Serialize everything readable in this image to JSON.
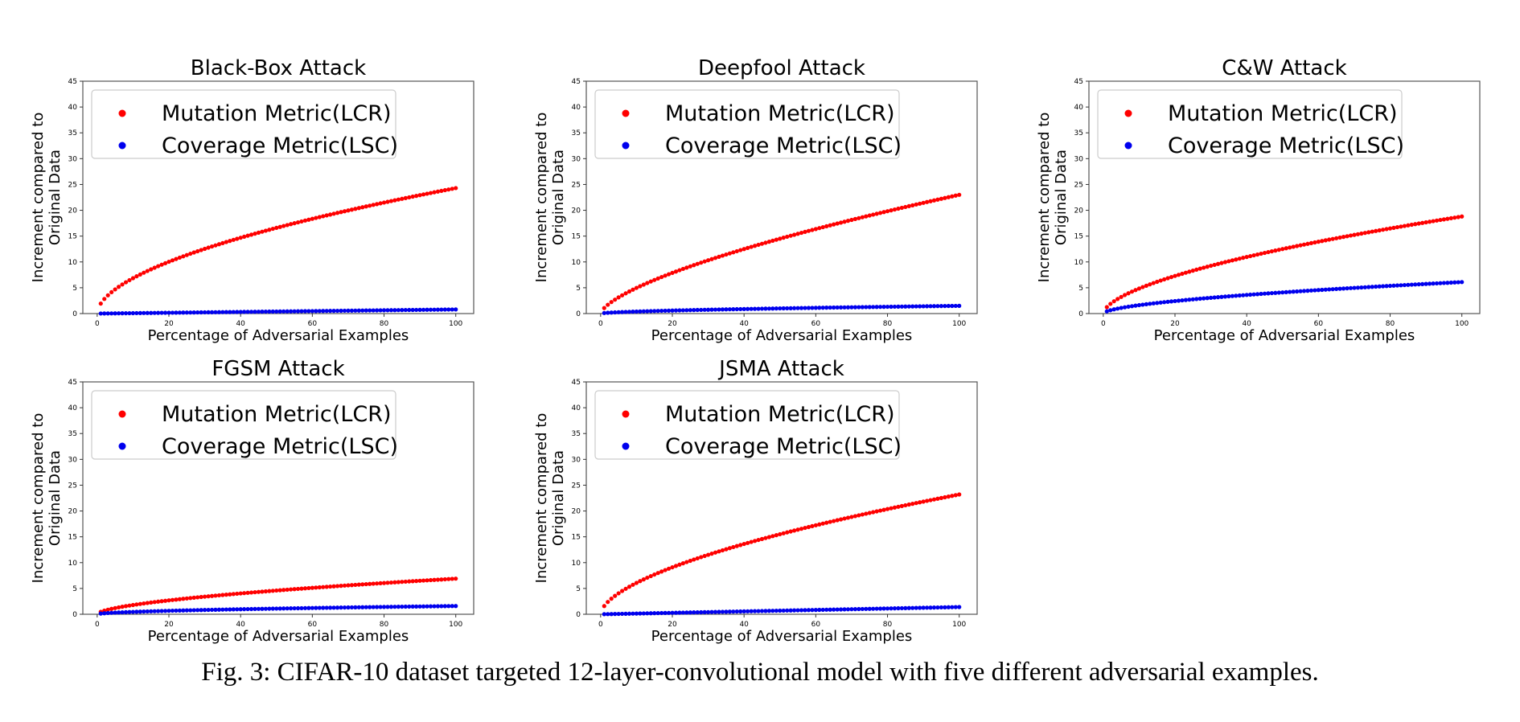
{
  "caption": "Fig. 3: CIFAR-10 dataset targeted 12-layer-convolutional model with five different adversarial examples.",
  "colors": {
    "lcr": "#ff0000",
    "lsc": "#0000ee",
    "axes": "#555555",
    "legend_border": "#cccccc"
  },
  "chart_data": [
    {
      "type": "scatter",
      "title": "Black-Box Attack",
      "xlabel": "Percentage of Adversarial Examples",
      "ylabel": [
        "Increment compared to",
        "Original Data"
      ],
      "xlim": [
        -4,
        105
      ],
      "ylim": [
        0,
        45
      ],
      "xticks": [
        "0",
        "20",
        "40",
        "60",
        "80",
        "100"
      ],
      "yticks": [
        "0",
        "5",
        "10",
        "15",
        "20",
        "25",
        "30",
        "35",
        "40",
        "45"
      ],
      "legend_position": "upper-left",
      "series": [
        {
          "name": "Mutation Metric(LCR)",
          "color": "#ff0000",
          "curve": "concave",
          "start": 0,
          "end": 24.3,
          "y_at_50": 16.6
        },
        {
          "name": "Coverage Metric(LSC)",
          "color": "#0000ee",
          "curve": "linear",
          "start": 0,
          "end": 0.8
        }
      ]
    },
    {
      "type": "scatter",
      "title": "Deepfool Attack",
      "xlabel": "Percentage of Adversarial Examples",
      "ylabel": [
        "Increment compared to",
        "Original Data"
      ],
      "xlim": [
        -4,
        105
      ],
      "ylim": [
        0,
        45
      ],
      "xticks": [
        "0",
        "20",
        "40",
        "60",
        "80",
        "100"
      ],
      "yticks": [
        "0",
        "5",
        "10",
        "15",
        "20",
        "25",
        "30",
        "35",
        "40",
        "45"
      ],
      "legend_position": "upper-left",
      "series": [
        {
          "name": "Mutation Metric(LCR)",
          "color": "#ff0000",
          "curve": "concave",
          "start": 0,
          "end": 23.0,
          "y_at_50": 14.5
        },
        {
          "name": "Coverage Metric(LSC)",
          "color": "#0000ee",
          "curve": "concave",
          "start": 0,
          "end": 1.5,
          "y_at_50": 1.0
        }
      ]
    },
    {
      "type": "scatter",
      "title": "C&W Attack",
      "xlabel": "Percentage of Adversarial Examples",
      "ylabel": [
        "Increment compared to",
        "Original Data"
      ],
      "xlim": [
        -4,
        105
      ],
      "ylim": [
        0,
        45
      ],
      "xticks": [
        "0",
        "20",
        "40",
        "60",
        "80",
        "100"
      ],
      "yticks": [
        "0",
        "5",
        "10",
        "15",
        "20",
        "25",
        "30",
        "35",
        "40",
        "45"
      ],
      "legend_position": "upper-left",
      "series": [
        {
          "name": "Mutation Metric(LCR)",
          "color": "#ff0000",
          "curve": "concave",
          "start": 0,
          "end": 18.8,
          "y_at_50": 12.5
        },
        {
          "name": "Coverage Metric(LSC)",
          "color": "#0000ee",
          "curve": "concave",
          "start": 0,
          "end": 6.1,
          "y_at_50": 4.1
        }
      ]
    },
    {
      "type": "scatter",
      "title": "FGSM Attack",
      "xlabel": "Percentage of Adversarial Examples",
      "ylabel": [
        "Increment compared to",
        "Original Data"
      ],
      "xlim": [
        -4,
        105
      ],
      "ylim": [
        0,
        45
      ],
      "xticks": [
        "0",
        "20",
        "40",
        "60",
        "80",
        "100"
      ],
      "yticks": [
        "0",
        "5",
        "10",
        "15",
        "20",
        "25",
        "30",
        "35",
        "40",
        "45"
      ],
      "legend_position": "upper-left",
      "series": [
        {
          "name": "Mutation Metric(LCR)",
          "color": "#ff0000",
          "curve": "concave",
          "start": 0,
          "end": 6.9,
          "y_at_50": 4.6
        },
        {
          "name": "Coverage Metric(LSC)",
          "color": "#0000ee",
          "curve": "concave",
          "start": 0,
          "end": 1.6,
          "y_at_50": 1.1
        }
      ]
    },
    {
      "type": "scatter",
      "title": "JSMA Attack",
      "xlabel": "Percentage of Adversarial Examples",
      "ylabel": [
        "Increment compared to",
        "Original Data"
      ],
      "xlim": [
        -4,
        105
      ],
      "ylim": [
        0,
        45
      ],
      "xticks": [
        "0",
        "20",
        "40",
        "60",
        "80",
        "100"
      ],
      "yticks": [
        "0",
        "5",
        "10",
        "15",
        "20",
        "25",
        "30",
        "35",
        "40",
        "45"
      ],
      "legend_position": "upper-left",
      "series": [
        {
          "name": "Mutation Metric(LCR)",
          "color": "#ff0000",
          "curve": "concave",
          "start": 0,
          "end": 23.2,
          "y_at_50": 15.5
        },
        {
          "name": "Coverage Metric(LSC)",
          "color": "#0000ee",
          "curve": "linear",
          "start": 0,
          "end": 1.4
        }
      ]
    }
  ]
}
